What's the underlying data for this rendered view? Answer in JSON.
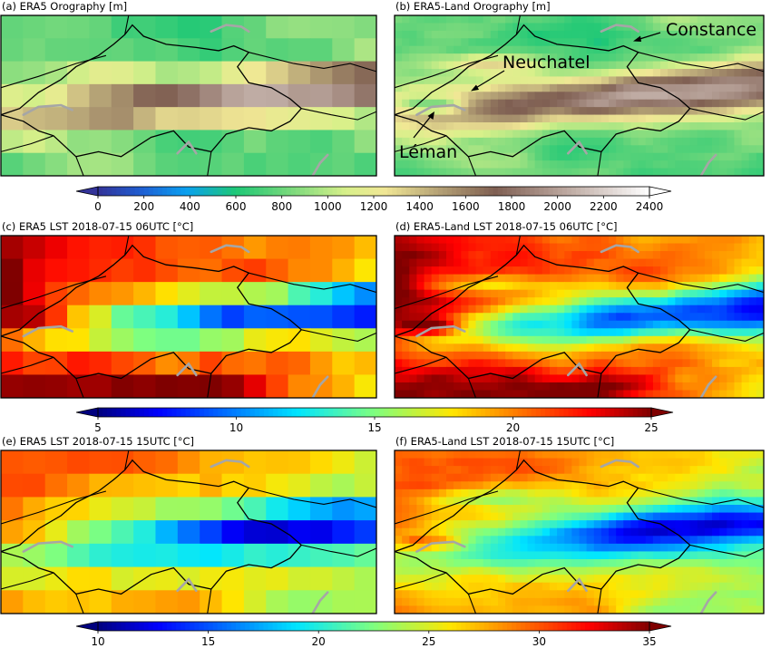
{
  "chart_data": [
    {
      "type": "heatmap",
      "title": "(a) ERA5 Orography [m]",
      "variable": "orography",
      "grid": [
        17,
        7
      ],
      "colormap": "terrain",
      "annotations": []
    },
    {
      "type": "heatmap",
      "title": "(b) ERA5-Land Orography [m]",
      "variable": "orography",
      "grid": [
        50,
        21
      ],
      "colormap": "terrain",
      "annotations": [
        "Constance",
        "Neuchatel",
        "Léman"
      ]
    },
    {
      "type": "heatmap",
      "title": "(c) ERA5 LST 2018-07-15 06UTC [°C]",
      "variable": "lst06",
      "grid": [
        17,
        7
      ],
      "colormap": "jet",
      "annotations": []
    },
    {
      "type": "heatmap",
      "title": "(d) ERA5-Land LST 2018-07-15 06UTC [°C]",
      "variable": "lst06",
      "grid": [
        50,
        21
      ],
      "colormap": "jet",
      "annotations": []
    },
    {
      "type": "heatmap",
      "title": "(e) ERA5 LST 2018-07-15 15UTC [°C]",
      "variable": "lst15",
      "grid": [
        17,
        7
      ],
      "colormap": "jet",
      "annotations": []
    },
    {
      "type": "heatmap",
      "title": "(f) ERA5-Land LST 2018-07-15 15UTC [°C]",
      "variable": "lst15",
      "grid": [
        50,
        21
      ],
      "colormap": "jet",
      "annotations": []
    }
  ],
  "colorbars": [
    {
      "for": "orography",
      "min": 0,
      "max": 2400,
      "ticks": [
        "0",
        "200",
        "400",
        "600",
        "800",
        "1000",
        "1200",
        "1400",
        "1600",
        "1800",
        "2000",
        "2200",
        "2400"
      ],
      "colormap": "terrain",
      "extend": "both"
    },
    {
      "for": "lst06",
      "min": 5,
      "max": 25,
      "ticks": [
        "5",
        "10",
        "15",
        "20",
        "25"
      ],
      "colormap": "jet",
      "extend": "both"
    },
    {
      "for": "lst15",
      "min": 10,
      "max": 35,
      "ticks": [
        "10",
        "15",
        "20",
        "25",
        "30",
        "35"
      ],
      "colormap": "jet",
      "extend": "both"
    }
  ],
  "colors": {
    "border": "#000000",
    "lakes": "#a6a6a6",
    "annotation_arrow": "#000000"
  }
}
